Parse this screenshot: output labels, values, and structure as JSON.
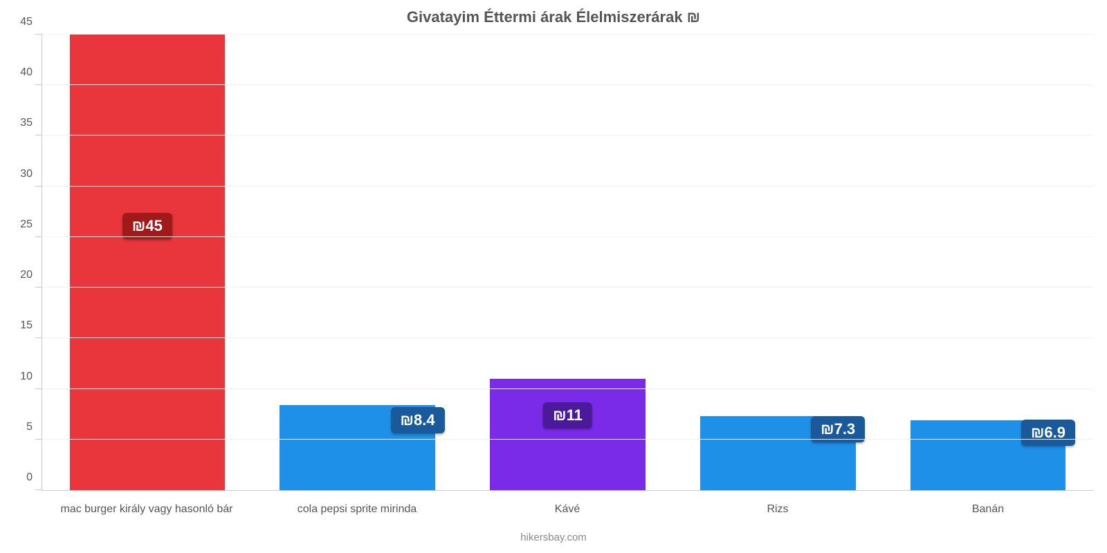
{
  "chart": {
    "type": "bar",
    "title": "Givatayim Éttermi árak Élelmiszerárak ₪",
    "title_fontsize": 22,
    "title_color": "#555555",
    "footer": "hikersbay.com",
    "footer_color": "#888888",
    "background_color": "#ffffff",
    "grid_color": "#f2f2f2",
    "axis_color": "#c9c9c9",
    "tick_label_color": "#555555",
    "tick_label_fontsize": 16,
    "ylim": [
      0,
      45
    ],
    "ytick_step": 5,
    "yticks": [
      0,
      5,
      10,
      15,
      20,
      25,
      30,
      35,
      40,
      45
    ],
    "bar_width": 0.74,
    "categories": [
      "mac burger király vagy hasonló bár",
      "cola pepsi sprite mirinda",
      "Kávé",
      "Rizs",
      "Banán"
    ],
    "values": [
      45,
      8.4,
      11,
      7.3,
      6.9
    ],
    "value_labels": [
      "₪45",
      "₪8.4",
      "₪11",
      "₪7.3",
      "₪6.9"
    ],
    "bar_colors": [
      "#e8363c",
      "#1e90e8",
      "#7a2be8",
      "#1e90e8",
      "#1e90e8"
    ],
    "badge_bg_colors": [
      "#a01a1a",
      "#1a5a9a",
      "#4a1a9a",
      "#1a5a9a",
      "#1a5a9a"
    ],
    "badge_text_color": "#ffffff",
    "badge_fontsize": 22,
    "badge_positions": [
      "center-high",
      "right-mid",
      "center-mid",
      "right-mid",
      "right-mid"
    ]
  }
}
